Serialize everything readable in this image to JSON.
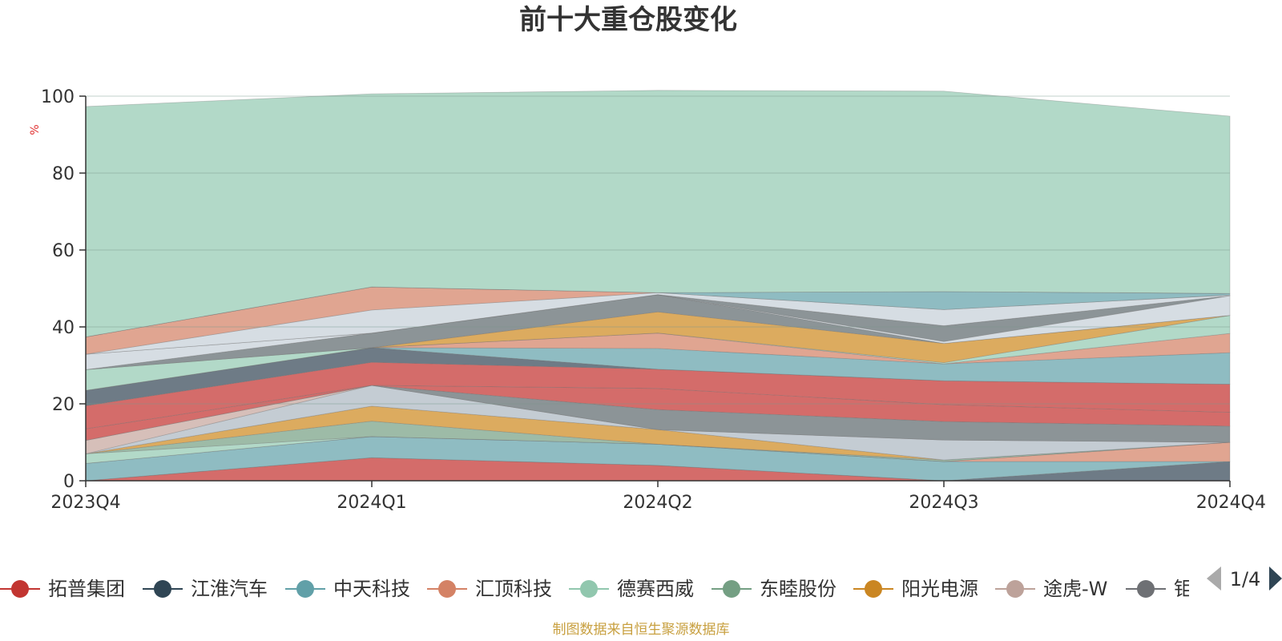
{
  "chart_data": {
    "type": "area",
    "stacked": true,
    "title": "前十大重仓股变化",
    "ylabel": "%",
    "ylim": [
      0,
      100
    ],
    "yticks": [
      0,
      20,
      40,
      60,
      80,
      100
    ],
    "categories": [
      "2023Q4",
      "2024Q1",
      "2024Q2",
      "2024Q3",
      "2024Q4"
    ],
    "legend_placement": "bottom",
    "legend_page": "1/4",
    "source_note": "制图数据来自恒生聚源数据库",
    "series": [
      {
        "name": "拓普集团",
        "values": [
          0,
          6.0,
          4.0,
          0,
          0
        ]
      },
      {
        "name": "",
        "values": [
          0,
          0,
          0,
          0,
          5.0
        ]
      },
      {
        "name": "中天科技",
        "values": [
          4.5,
          5.5,
          5.5,
          5.0,
          0
        ]
      },
      {
        "name": "",
        "values": [
          0,
          0,
          0,
          0,
          5.0
        ]
      },
      {
        "name": "汇顶科技",
        "values": [
          2.5,
          0,
          0,
          0,
          0
        ]
      },
      {
        "name": "德赛西威",
        "values": [
          0,
          4.0,
          0,
          0.4,
          0
        ]
      },
      {
        "name": "东睦股份",
        "values": [
          0,
          3.9,
          3.8,
          0,
          0
        ]
      },
      {
        "name": "阳光电源",
        "values": [
          0,
          5.4,
          0,
          5.2,
          0
        ]
      },
      {
        "name": "",
        "values": [
          3.5,
          0,
          0,
          0,
          0
        ]
      },
      {
        "name": "途虎-W",
        "values": [
          0,
          0,
          5.2,
          4.8,
          4.2
        ]
      },
      {
        "name": "",
        "values": [
          3.0,
          0,
          5.5,
          4.4,
          3.6
        ]
      },
      {
        "name": "",
        "values": [
          6.0,
          6.0,
          5.0,
          6.2,
          7.3
        ]
      },
      {
        "name": "",
        "values": [
          4.0,
          3.8,
          0,
          0,
          0
        ]
      },
      {
        "name": "",
        "values": [
          0,
          0,
          5.4,
          4.4,
          8.2
        ]
      },
      {
        "name": "",
        "values": [
          0,
          0,
          4.0,
          0,
          5.0
        ]
      },
      {
        "name": "",
        "values": [
          5.4,
          0,
          0,
          0.3,
          4.7
        ]
      },
      {
        "name": "",
        "values": [
          0,
          0,
          5.5,
          5.0,
          0
        ]
      },
      {
        "name": "",
        "values": [
          0,
          3.8,
          4.5,
          0,
          0
        ]
      },
      {
        "name": "",
        "values": [
          4.0,
          0,
          0,
          0.5,
          5.1
        ]
      },
      {
        "name": "",
        "values": [
          0,
          0,
          0,
          4.1,
          0
        ]
      },
      {
        "name": "",
        "values": [
          0,
          6.0,
          0.5,
          4.2,
          0.2
        ]
      },
      {
        "name": "",
        "values": [
          4.5,
          6.0,
          0,
          0,
          0
        ]
      },
      {
        "name": "",
        "values": [
          0,
          0,
          0,
          4.7,
          0.4
        ]
      },
      {
        "name": "",
        "values": [
          0,
          0,
          0,
          0,
          0
        ]
      },
      {
        "name": "",
        "values": [
          59.9,
          50.2,
          52.6,
          52.1,
          46.1
        ]
      }
    ],
    "legend": [
      {
        "name": "拓普集团",
        "color": "#c23531"
      },
      {
        "name": "江淮汽车",
        "color": "#2f4554"
      },
      {
        "name": "中天科技",
        "color": "#61a0a8"
      },
      {
        "name": "汇顶科技",
        "color": "#d48265"
      },
      {
        "name": "德赛西威",
        "color": "#91c7ae"
      },
      {
        "name": "东睦股份",
        "color": "#749f83"
      },
      {
        "name": "阳光电源",
        "color": "#ca8622"
      },
      {
        "name": "途虎-W",
        "color": "#bda29a"
      },
      {
        "name": "钜",
        "color": "#6e7074"
      }
    ]
  },
  "colors": {
    "palette": [
      "#c23531",
      "#2f4554",
      "#61a0a8",
      "#d48265",
      "#91c7ae",
      "#749f83",
      "#ca8622",
      "#bda29a",
      "#6e7074",
      "#c4ccd3"
    ],
    "series_colors": [
      "#d46c6a",
      "#6e7b86",
      "#8fbcc2",
      "#e0a591",
      "#b2d9c8",
      "#9dbba7",
      "#dcab5f",
      "#c4ccd3",
      "#d6bfb9",
      "#8c9497",
      "#d46c6a",
      "#d46c6a",
      "#6e7b86",
      "#8fbcc2",
      "#e0a591",
      "#b2d9c8",
      "#dcab5f",
      "#8c9497",
      "#d6dde3",
      "#8c9497",
      "#d6dde3",
      "#e0a591",
      "#8fbcc2",
      "#d6dde3",
      "#b2d9c8"
    ],
    "title": "#333333",
    "ylabel": "#e03030",
    "source": "#c8a040",
    "pager_active": "#2f4554",
    "pager_inactive": "#aaaaaa"
  }
}
